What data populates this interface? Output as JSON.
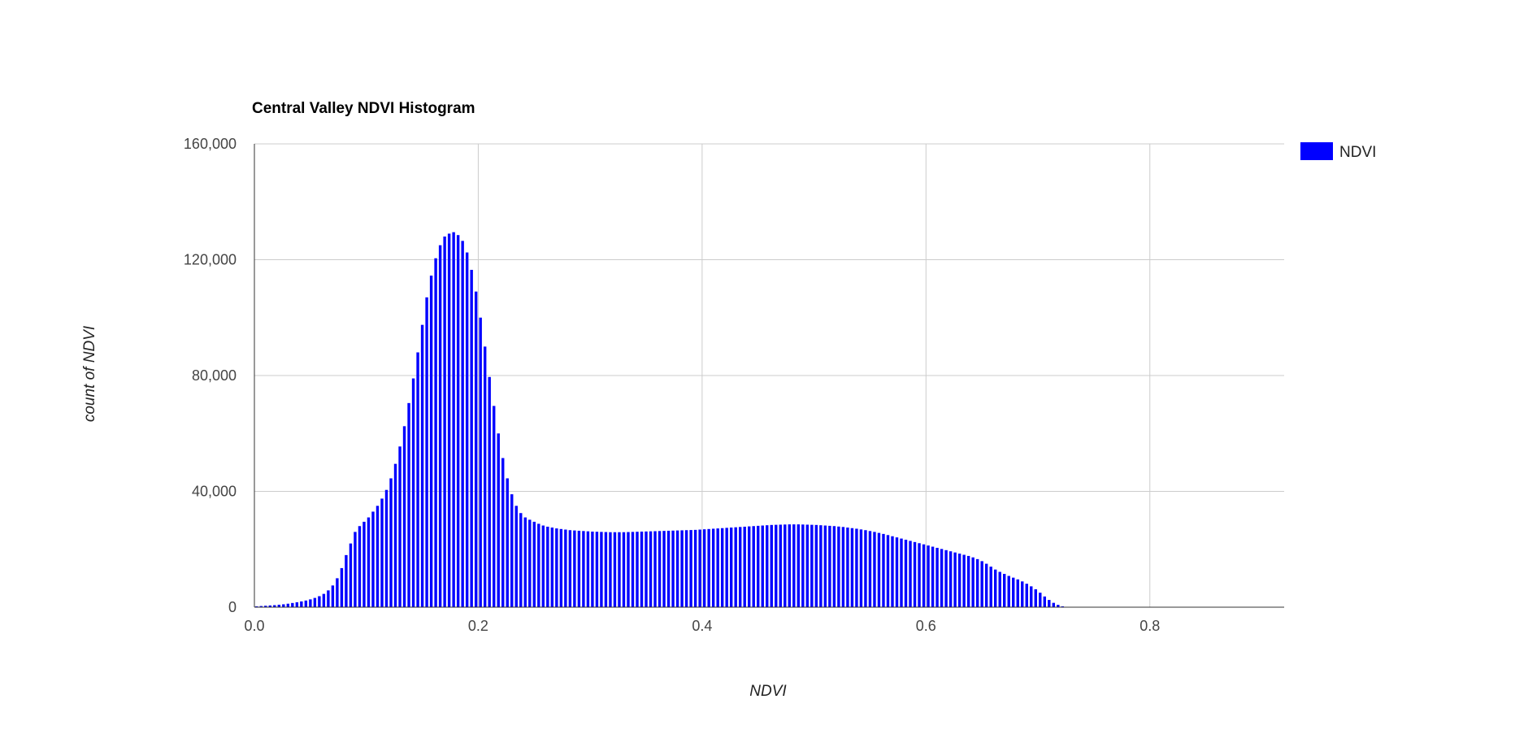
{
  "chart_data": {
    "type": "bar",
    "title": "Central Valley NDVI Histogram",
    "xlabel": "NDVI",
    "ylabel": "count of NDVI",
    "xlim": [
      0,
      0.92
    ],
    "ylim": [
      0,
      160000
    ],
    "x_ticks": [
      0,
      0.2,
      0.4,
      0.6,
      0.8
    ],
    "x_tick_labels": [
      "0.0",
      "0.2",
      "0.4",
      "0.6",
      "0.8"
    ],
    "y_ticks": [
      0,
      40000,
      80000,
      120000,
      160000
    ],
    "y_tick_labels": [
      "0",
      "40,000",
      "80,000",
      "120,000",
      "160,000"
    ],
    "grid": true,
    "legend_position": "right",
    "bin_start": 0,
    "bin_width": 0.004,
    "series": [
      {
        "name": "NDVI",
        "color": "#0000ff",
        "values": [
          300,
          400,
          500,
          600,
          700,
          850,
          1000,
          1200,
          1450,
          1700,
          2000,
          2300,
          2700,
          3200,
          3800,
          4600,
          5800,
          7500,
          10000,
          13500,
          18000,
          22000,
          26000,
          28000,
          29500,
          31000,
          33000,
          35000,
          37500,
          40500,
          44500,
          49500,
          55500,
          62500,
          70500,
          79000,
          88000,
          97500,
          107000,
          114500,
          120500,
          125000,
          128000,
          129000,
          129500,
          128500,
          126500,
          122500,
          116500,
          109000,
          100000,
          90000,
          79500,
          69500,
          60000,
          51500,
          44500,
          39000,
          35000,
          32500,
          31000,
          30200,
          29500,
          28800,
          28200,
          27800,
          27500,
          27200,
          27000,
          26800,
          26600,
          26500,
          26400,
          26300,
          26200,
          26100,
          26050,
          26000,
          25950,
          25900,
          25900,
          25900,
          25900,
          25950,
          26000,
          26050,
          26100,
          26150,
          26200,
          26250,
          26300,
          26350,
          26400,
          26450,
          26500,
          26550,
          26600,
          26650,
          26700,
          26800,
          26900,
          27000,
          27100,
          27200,
          27300,
          27400,
          27500,
          27600,
          27700,
          27800,
          27900,
          28000,
          28100,
          28200,
          28300,
          28400,
          28450,
          28500,
          28550,
          28600,
          28600,
          28600,
          28550,
          28500,
          28450,
          28400,
          28300,
          28200,
          28100,
          28000,
          27850,
          27700,
          27500,
          27300,
          27100,
          26850,
          26600,
          26300,
          26000,
          25650,
          25300,
          24900,
          24500,
          24100,
          23700,
          23300,
          22900,
          22500,
          22100,
          21700,
          21300,
          20900,
          20500,
          20100,
          19700,
          19300,
          18900,
          18500,
          18100,
          17700,
          17200,
          16600,
          15900,
          15000,
          14000,
          13000,
          12200,
          11500,
          10800,
          10200,
          9600,
          8900,
          8100,
          7200,
          6200,
          5000,
          3700,
          2500,
          1500,
          800,
          300,
          100
        ]
      }
    ]
  }
}
